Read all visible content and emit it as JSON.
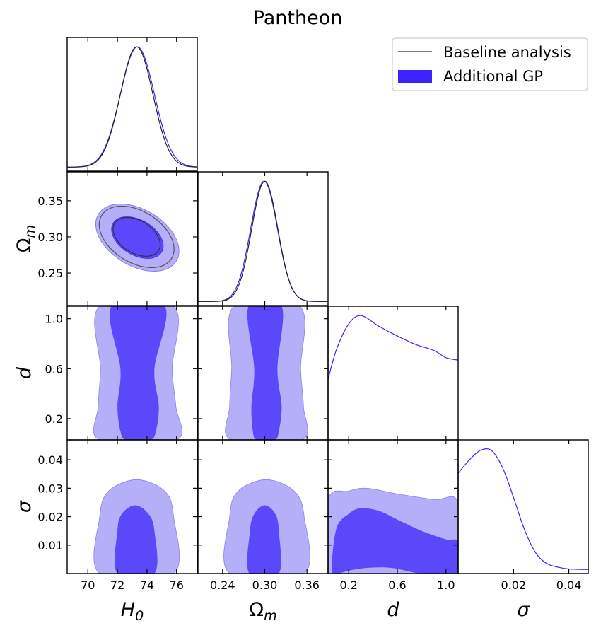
{
  "chart_data": {
    "type": "triangle",
    "title": "Pantheon",
    "parameters": [
      {
        "key": "H0",
        "label": "H",
        "sub": "0",
        "range": [
          68.6,
          77.4
        ],
        "ticks": [
          70,
          72,
          74,
          76
        ]
      },
      {
        "key": "Om",
        "label": "Ω",
        "sub": "m",
        "range": [
          0.205,
          0.39
        ],
        "ticks": [
          0.25,
          0.3,
          0.35
        ],
        "bottom_ticks": [
          0.24,
          0.3,
          0.36
        ]
      },
      {
        "key": "d",
        "label": "d",
        "sub": "",
        "range": [
          0.03,
          1.1
        ],
        "ticks": [
          0.2,
          0.6,
          1.0
        ]
      },
      {
        "key": "sigma",
        "label": "σ",
        "sub": "",
        "range": [
          0,
          0.047
        ],
        "ticks": [
          0.01,
          0.02,
          0.03,
          0.04
        ],
        "bottom_ticks": [
          0.02,
          0.04
        ]
      }
    ],
    "tick_labels": {
      "H0": [
        "70",
        "72",
        "74",
        "76"
      ],
      "Om_left": [
        "0.25",
        "0.30",
        "0.35"
      ],
      "Om_bottom": [
        "0.24",
        "0.30",
        "0.36"
      ],
      "d": [
        "0.2",
        "0.6",
        "1.0"
      ],
      "sigma_left": [
        "0.01",
        "0.02",
        "0.03",
        "0.04"
      ],
      "sigma_bottom": [
        "0.02",
        "0.04"
      ]
    },
    "legend": {
      "position": "top-right",
      "entries": [
        {
          "name": "Baseline analysis",
          "style": "line",
          "color": "#555555"
        },
        {
          "name": "Additional GP",
          "style": "fill",
          "color": "#3d21ff"
        }
      ]
    },
    "colors": {
      "gp_dark": "#5b48fb",
      "gp_light": "#b5aff9",
      "gp_line": "#3d21ff",
      "baseline": "#222222"
    },
    "marginals": {
      "H0": {
        "baseline": {
          "mean": 73.3,
          "sd": 1.1
        },
        "gp": {
          "mean": 73.35,
          "sd": 1.15
        }
      },
      "Om": {
        "baseline": {
          "mean": 0.3,
          "sd": 0.0185
        },
        "gp": {
          "mean": 0.299,
          "sd": 0.019
        }
      },
      "d": {
        "gp": {
          "x": [
            0.03,
            0.1,
            0.2,
            0.3,
            0.45,
            0.6,
            0.75,
            0.9,
            1.0,
            1.1
          ],
          "y": [
            0.47,
            0.72,
            0.93,
            1.0,
            0.91,
            0.83,
            0.76,
            0.71,
            0.65,
            0.63
          ]
        }
      },
      "sigma": {
        "gp": {
          "x": [
            0,
            0.004,
            0.008,
            0.012,
            0.016,
            0.02,
            0.024,
            0.028,
            0.032,
            0.036,
            0.04,
            0.047
          ],
          "y": [
            0.8,
            0.91,
            0.99,
            0.99,
            0.85,
            0.6,
            0.33,
            0.14,
            0.05,
            0.02,
            0.005,
            0.0
          ]
        }
      }
    },
    "contours": {
      "H0_Om": {
        "gp": {
          "mean": [
            73.35,
            0.299
          ],
          "sd": [
            1.15,
            0.019
          ],
          "rho": -0.4
        },
        "baseline": {
          "mean": [
            73.3,
            0.3
          ],
          "sd": [
            1.1,
            0.0185
          ],
          "rho": -0.4
        }
      },
      "H0_d": {
        "gp": {
          "inner": [
            [
              71.6,
              1.1
            ],
            [
              72.2,
              0.6
            ],
            [
              72.0,
              0.3
            ],
            [
              72.2,
              0.1
            ],
            [
              72.6,
              0.03
            ],
            [
              74.2,
              0.03
            ],
            [
              74.6,
              0.1
            ],
            [
              74.8,
              0.3
            ],
            [
              74.5,
              0.6
            ],
            [
              75.2,
              1.1
            ]
          ],
          "outer": [
            [
              70.8,
              1.1
            ],
            [
              70.85,
              0.6
            ],
            [
              70.7,
              0.3
            ],
            [
              70.8,
              0.03
            ],
            [
              76.0,
              0.03
            ],
            [
              75.95,
              0.3
            ],
            [
              75.7,
              0.6
            ],
            [
              75.8,
              1.1
            ]
          ]
        }
      },
      "H0_sigma": {
        "gp": {
          "inner": [
            [
              72.0,
              0
            ],
            [
              72.0,
              0.015
            ],
            [
              72.3,
              0.021
            ],
            [
              73.2,
              0.024
            ],
            [
              74.1,
              0.021
            ],
            [
              74.5,
              0.015
            ],
            [
              74.5,
              0
            ]
          ],
          "outer": [
            [
              70.8,
              0
            ],
            [
              70.8,
              0.02
            ],
            [
              71.4,
              0.029
            ],
            [
              73.3,
              0.033
            ],
            [
              75.2,
              0.029
            ],
            [
              75.8,
              0.02
            ],
            [
              75.8,
              0
            ]
          ]
        }
      },
      "Om_d": {
        "gp": {
          "inner": [
            [
              0.277,
              1.1
            ],
            [
              0.285,
              0.6
            ],
            [
              0.281,
              0.3
            ],
            [
              0.283,
              0.1
            ],
            [
              0.289,
              0.03
            ],
            [
              0.314,
              0.03
            ],
            [
              0.32,
              0.1
            ],
            [
              0.324,
              0.3
            ],
            [
              0.318,
              0.6
            ],
            [
              0.324,
              1.1
            ]
          ],
          "outer": [
            [
              0.256,
              1.1
            ],
            [
              0.253,
              0.6
            ],
            [
              0.25,
              0.3
            ],
            [
              0.252,
              0.03
            ],
            [
              0.353,
              0.03
            ],
            [
              0.355,
              0.3
            ],
            [
              0.351,
              0.6
            ],
            [
              0.35,
              1.1
            ]
          ]
        }
      },
      "Om_sigma": {
        "gp": {
          "inner": [
            [
              0.278,
              0
            ],
            [
              0.279,
              0.015
            ],
            [
              0.285,
              0.021
            ],
            [
              0.3,
              0.024
            ],
            [
              0.315,
              0.021
            ],
            [
              0.32,
              0.015
            ],
            [
              0.32,
              0
            ]
          ],
          "outer": [
            [
              0.25,
              0
            ],
            [
              0.25,
              0.02
            ],
            [
              0.262,
              0.029
            ],
            [
              0.302,
              0.033
            ],
            [
              0.342,
              0.029
            ],
            [
              0.356,
              0.02
            ],
            [
              0.356,
              0
            ]
          ]
        }
      },
      "d_sigma": {
        "gp": {
          "outer": [
            [
              0.03,
              0
            ],
            [
              0.03,
              0.026
            ],
            [
              0.2,
              0.029
            ],
            [
              0.35,
              0.03
            ],
            [
              0.6,
              0.028
            ],
            [
              0.9,
              0.026
            ],
            [
              1.1,
              0.025
            ],
            [
              1.1,
              0
            ]
          ],
          "inner": [
            [
              0.06,
              0.002
            ],
            [
              0.1,
              0.016
            ],
            [
              0.2,
              0.021
            ],
            [
              0.3,
              0.023
            ],
            [
              0.45,
              0.022
            ],
            [
              0.6,
              0.019
            ],
            [
              0.8,
              0.015
            ],
            [
              1.0,
              0.012
            ],
            [
              1.1,
              0.011
            ],
            [
              1.1,
              0
            ],
            [
              0.8,
              0
            ],
            [
              0.55,
              0.002
            ],
            [
              0.35,
              0.002
            ],
            [
              0.2,
              0.001
            ],
            [
              0.1,
              0
            ]
          ]
        }
      }
    }
  }
}
